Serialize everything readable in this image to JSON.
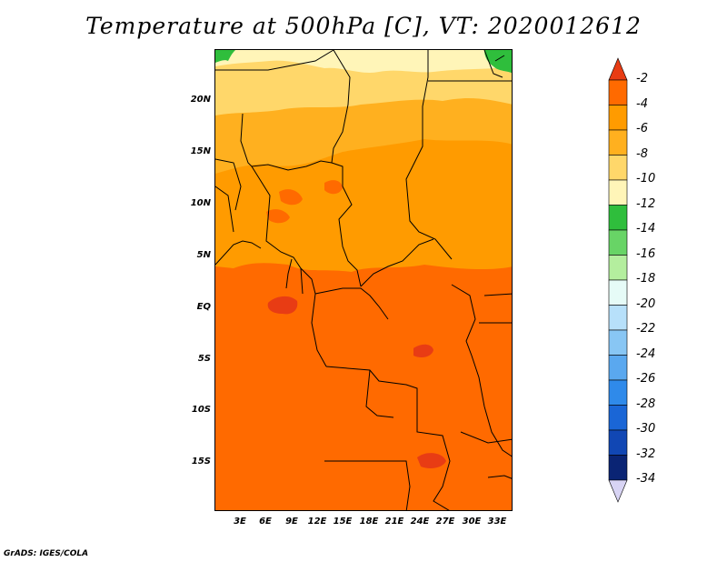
{
  "title": "Temperature at 500hPa [C], VT: 2020012612",
  "credit": "GrADS: IGES/COLA",
  "map": {
    "lat_labels": [
      "20N",
      "15N",
      "10N",
      "5N",
      "EQ",
      "5S",
      "10S",
      "15S"
    ],
    "lon_labels": [
      "3E",
      "6E",
      "9E",
      "12E",
      "15E",
      "18E",
      "21E",
      "24E",
      "27E",
      "30E",
      "33E"
    ]
  },
  "colorbar": {
    "labels": [
      "-2",
      "-4",
      "-6",
      "-8",
      "-10",
      "-12",
      "-14",
      "-16",
      "-18",
      "-20",
      "-22",
      "-24",
      "-26",
      "-28",
      "-30",
      "-32",
      "-34"
    ],
    "colors": [
      "#e83c14",
      "#ff6a00",
      "#ff9b00",
      "#ffb01f",
      "#ffd76a",
      "#fff5b8",
      "#2fbe3c",
      "#68d466",
      "#b4ee9e",
      "#e6fbf7",
      "#b7e0fa",
      "#88c6f4",
      "#5aa8ef",
      "#2f8aea",
      "#1a66d6",
      "#1147b4",
      "#0a2474",
      "#d8d4f4"
    ]
  },
  "colors": {
    "band_yellow": "#ffd76a",
    "band_light_orange": "#ffb01f",
    "band_orange": "#ff9b00",
    "band_dark_orange": "#ff6a00",
    "band_red": "#e83c14",
    "band_green": "#2fbe3c"
  }
}
